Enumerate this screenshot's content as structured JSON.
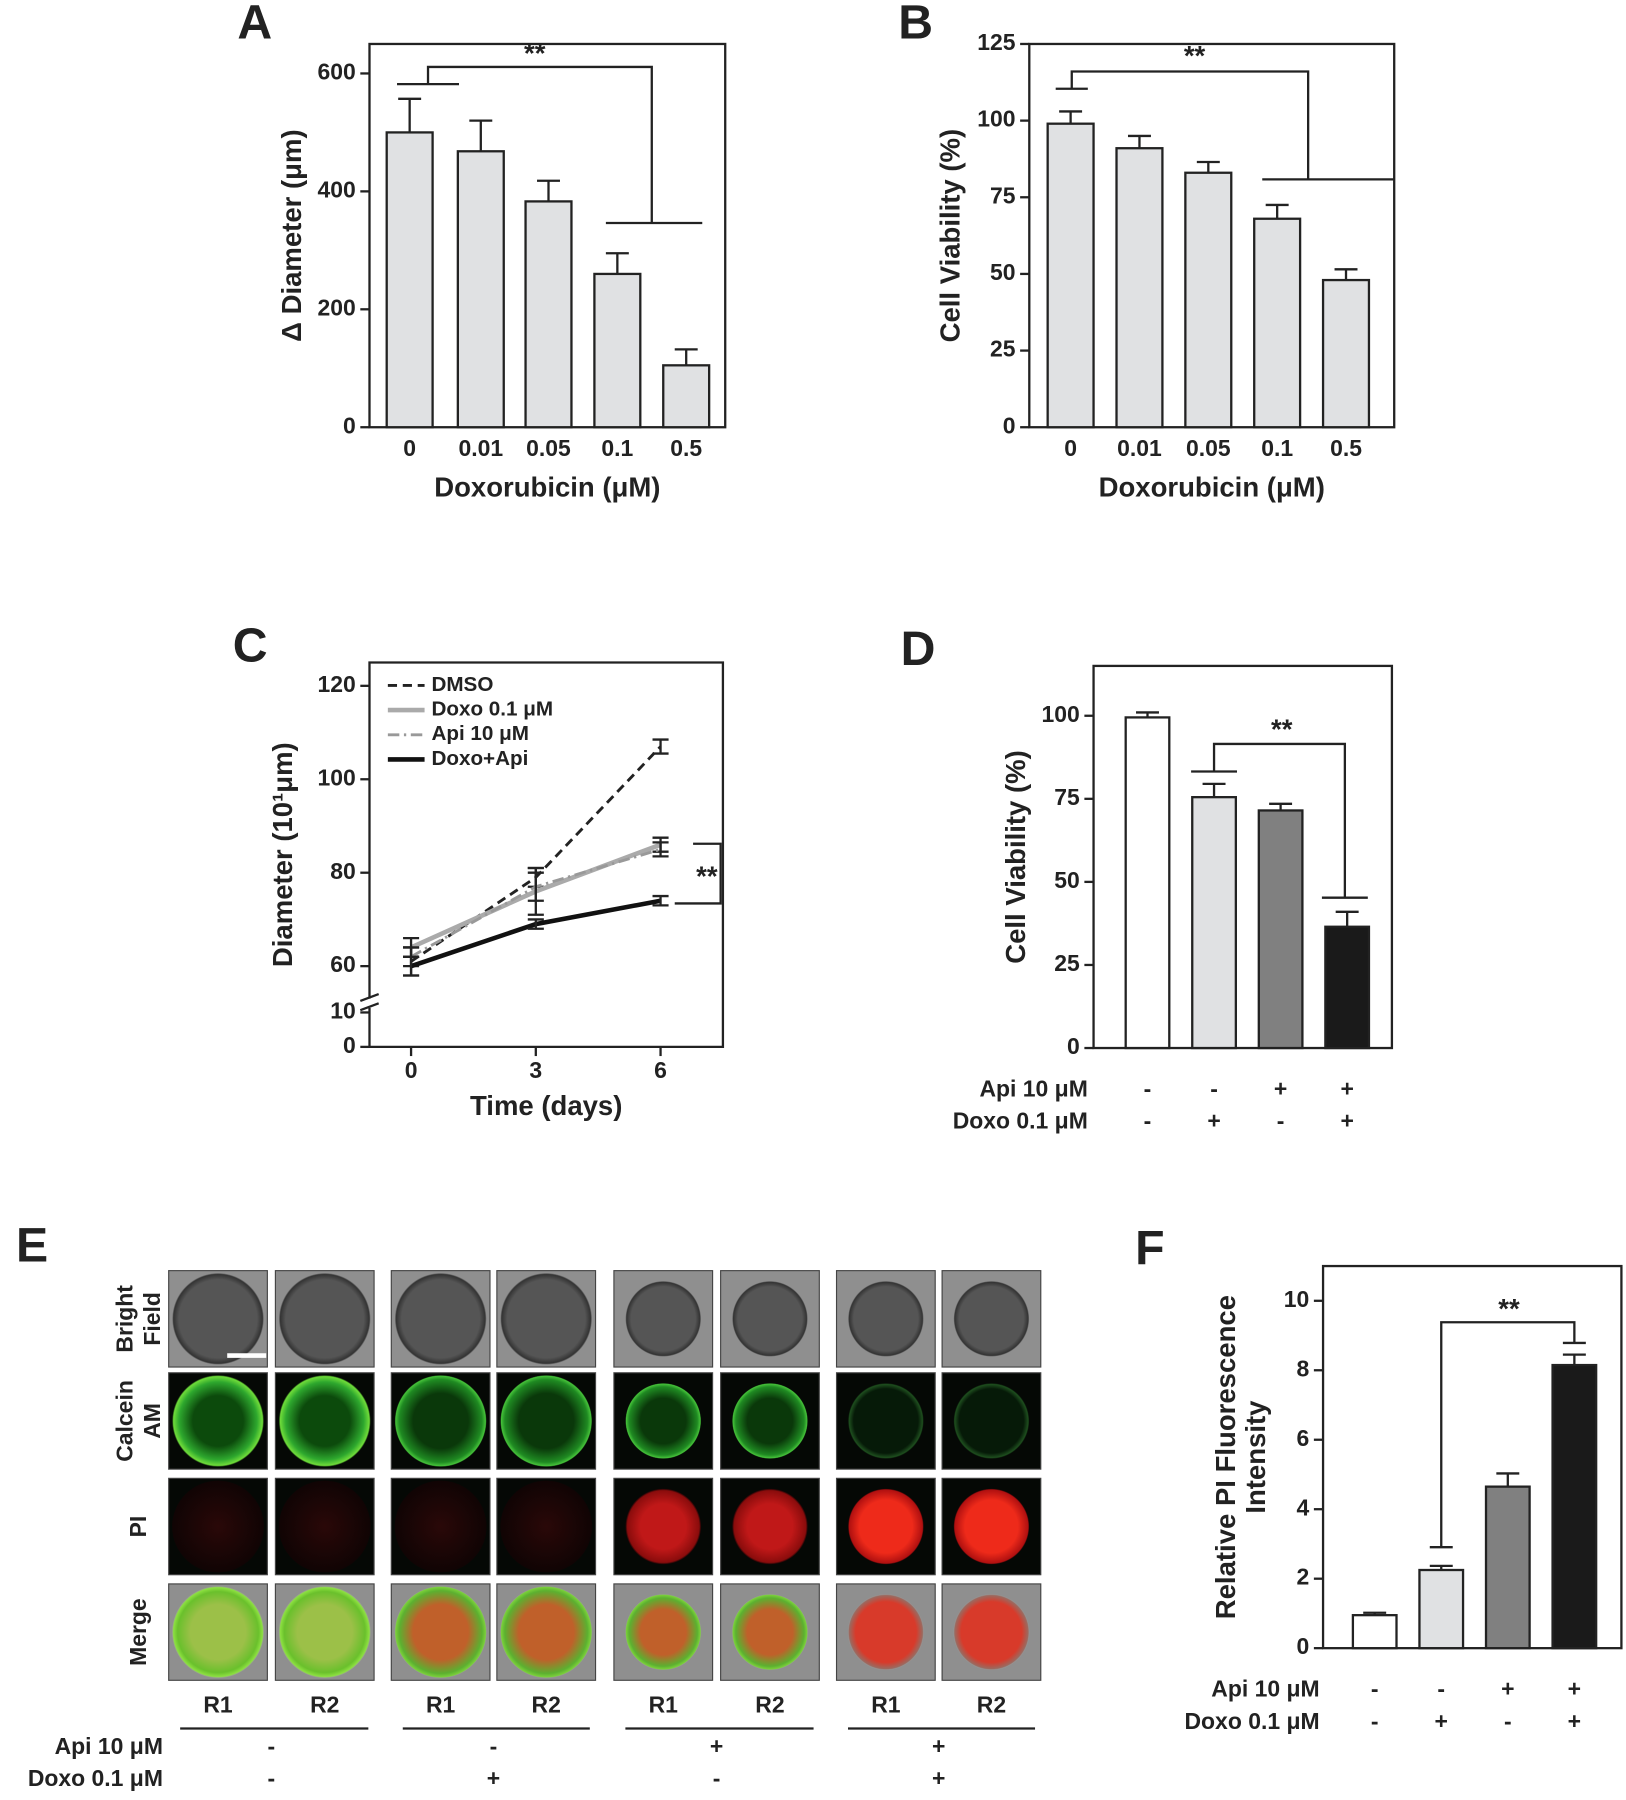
{
  "chart_data": [
    {
      "type": "bar",
      "label": "A",
      "ylabel": "Δ Diameter (μm)",
      "xlabel": "Doxorubicin (μM)",
      "categories": [
        "0",
        "0.01",
        "0.05",
        "0.1",
        "0.5"
      ],
      "values": [
        500,
        468,
        383,
        260,
        105
      ],
      "errors": [
        57,
        52,
        35,
        35,
        27
      ],
      "color": "#e0e1e3",
      "ylim": [
        0,
        650
      ],
      "yticks": [
        0,
        200,
        400,
        600
      ],
      "annotation": "**",
      "grid": false
    },
    {
      "type": "bar",
      "label": "B",
      "ylabel": "Cell Viability (%)",
      "xlabel": "Doxorubicin (μM)",
      "categories": [
        "0",
        "0.01",
        "0.05",
        "0.1",
        "0.5"
      ],
      "values": [
        99,
        91,
        83,
        68,
        48
      ],
      "errors": [
        4,
        4,
        3.5,
        4.5,
        3.5
      ],
      "color": "#e0e1e3",
      "ylim": [
        0,
        125
      ],
      "yticks": [
        0,
        25,
        50,
        75,
        100,
        125
      ],
      "annotation": "**",
      "grid": false
    },
    {
      "type": "line",
      "label": "C",
      "ylabel": "Diameter (10¹μm)",
      "xlabel": "Time (days)",
      "x": [
        0,
        3,
        6
      ],
      "xlim": [
        -1,
        7.5
      ],
      "xticks": [
        0,
        3,
        6
      ],
      "ylim": [
        55,
        125
      ],
      "yticks": [
        60,
        80,
        100,
        120
      ],
      "lower_ylim": [
        0,
        10
      ],
      "lower_yticks": [
        0,
        10
      ],
      "series": [
        {
          "name": "DMSO",
          "color": "#222222",
          "style": "dashed",
          "values": [
            61,
            79,
            107
          ],
          "errors": [
            3,
            2,
            1.5
          ]
        },
        {
          "name": "Doxo 0.1 μM",
          "color": "#aaaaaa",
          "style": "solid",
          "values": [
            64,
            76,
            86
          ],
          "errors": [
            2,
            5,
            1.5
          ]
        },
        {
          "name": "Api 10 μM",
          "color": "#999999",
          "style": "dashdot",
          "values": [
            62,
            77,
            85
          ],
          "errors": [
            2,
            3,
            1.5
          ]
        },
        {
          "name": "Doxo+Api",
          "color": "#111111",
          "style": "solid",
          "values": [
            60,
            69,
            74
          ],
          "errors": [
            2,
            1,
            1
          ]
        }
      ],
      "legend": "upper left",
      "annotation": "**",
      "grid": false
    },
    {
      "type": "bar",
      "label": "D",
      "ylabel": "Cell Viability (%)",
      "values": [
        99.5,
        75.5,
        71.5,
        36.5
      ],
      "errors": [
        1.5,
        4,
        2,
        4.5
      ],
      "colors": [
        "#ffffff",
        "#e0e1e3",
        "#808080",
        "#1a1a1a"
      ],
      "ylim": [
        0,
        115
      ],
      "yticks": [
        0,
        25,
        50,
        75,
        100
      ],
      "treatments": [
        {
          "name": "Api 10 μM",
          "signs": [
            "-",
            "-",
            "+",
            "+"
          ]
        },
        {
          "name": "Doxo 0.1 μM",
          "signs": [
            "-",
            "+",
            "-",
            "+"
          ]
        }
      ],
      "annotation": "**",
      "grid": false
    },
    {
      "type": "bar",
      "label": "F",
      "ylabel": [
        "Relative PI Fluorescence",
        "Intensity"
      ],
      "values": [
        0.95,
        2.25,
        4.65,
        8.15
      ],
      "errors": [
        0.07,
        0.12,
        0.38,
        0.3
      ],
      "colors": [
        "#ffffff",
        "#e0e1e3",
        "#808080",
        "#1a1a1a"
      ],
      "ylim": [
        0,
        11
      ],
      "yticks": [
        0,
        2,
        4,
        6,
        8,
        10
      ],
      "treatments": [
        {
          "name": "Api 10 μM",
          "signs": [
            "-",
            "-",
            "+",
            "+"
          ]
        },
        {
          "name": "Doxo 0.1 μM",
          "signs": [
            "-",
            "+",
            "-",
            "+"
          ]
        }
      ],
      "annotation": "**",
      "grid": false
    }
  ],
  "figure_e": {
    "label": "E",
    "rows": [
      [
        "Bright",
        "Field"
      ],
      [
        "Calcein",
        "AM"
      ],
      [
        "PI"
      ],
      [
        "Merge"
      ]
    ],
    "columns": [
      "R1",
      "R2",
      "R1",
      "R2",
      "R1",
      "R2",
      "R1",
      "R2"
    ],
    "treatments": [
      {
        "name": "Api 10 μM",
        "signs": [
          "-",
          "-",
          "+",
          "+"
        ]
      },
      {
        "name": "Doxo 0.1 μM",
        "signs": [
          "-",
          "+",
          "-",
          "+"
        ]
      }
    ]
  }
}
